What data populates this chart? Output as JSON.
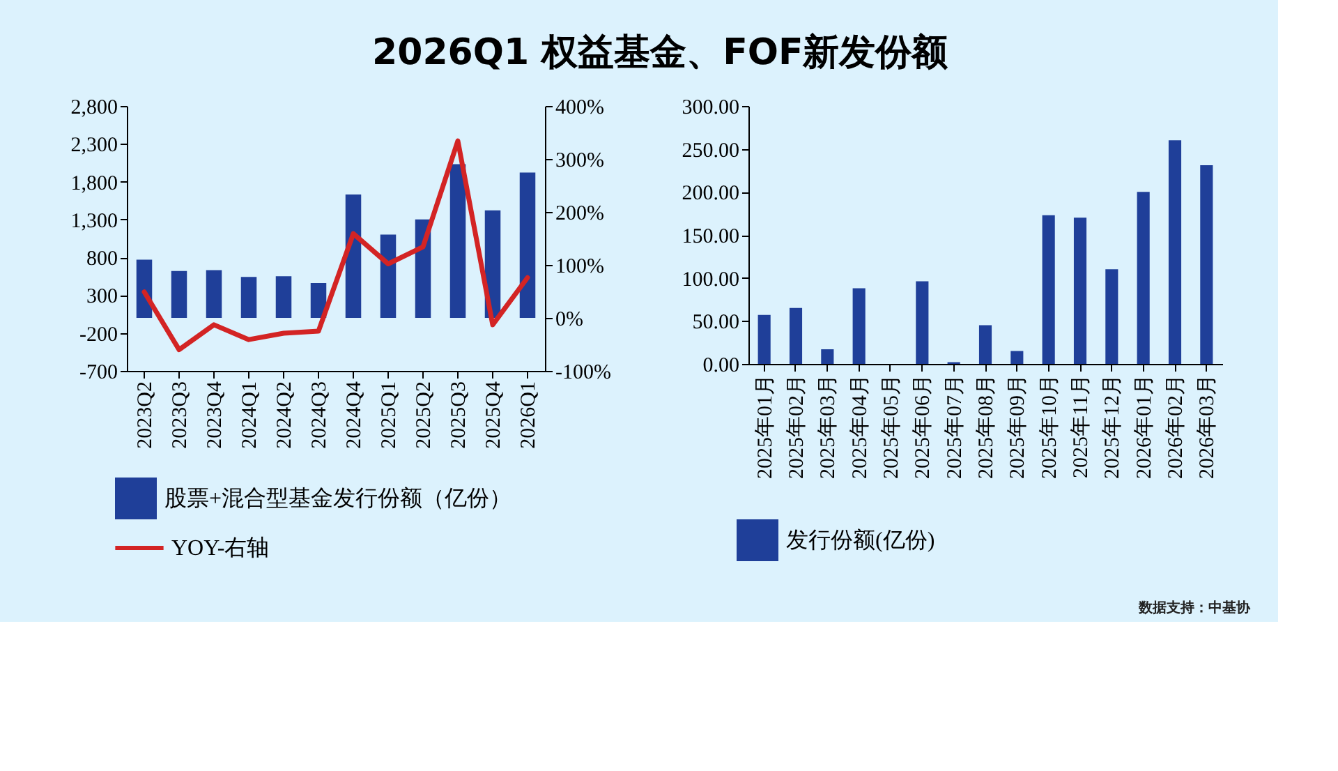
{
  "chart_data": [
    {
      "type": "bar",
      "title": "2026Q1 权益基金、FOF新发份额",
      "categories": [
        "2023Q2",
        "2023Q3",
        "2023Q4",
        "2024Q1",
        "2024Q2",
        "2024Q3",
        "2024Q4",
        "2025Q1",
        "2025Q2",
        "2025Q3",
        "2025Q4",
        "2026Q1"
      ],
      "series": [
        {
          "name": "股票+混合型基金发行份额（亿份）",
          "type": "bar",
          "color": "#1f3f99",
          "values": [
            770,
            620,
            630,
            540,
            550,
            460,
            1630,
            1100,
            1300,
            2030,
            1420,
            1920
          ]
        },
        {
          "name": "YOY-右轴",
          "type": "line",
          "axis": "y2",
          "color": "#d32424",
          "values": [
            49,
            -60,
            -13,
            -41,
            -29,
            -25,
            159,
            102,
            134,
            334,
            -13,
            76
          ]
        }
      ],
      "ylim": [
        -700,
        2800
      ],
      "yticks": [
        {
          "value": -700,
          "label": "-700"
        },
        {
          "value": -200,
          "label": "-200"
        },
        300,
        800,
        {
          "value": 1300,
          "label": "1,300"
        },
        {
          "value": 1800,
          "label": "1,800"
        },
        {
          "value": 2300,
          "label": "2,300"
        },
        {
          "value": 2800,
          "label": "2,800"
        }
      ],
      "y2lim": [
        -100,
        400
      ],
      "y2ticks": [
        {
          "value": -100,
          "label": "-100%"
        },
        {
          "value": 0,
          "label": "0%"
        },
        {
          "value": 100,
          "label": "100%"
        },
        {
          "value": 200,
          "label": "200%"
        },
        {
          "value": 300,
          "label": "300%"
        },
        {
          "value": 400,
          "label": "400%"
        }
      ],
      "legend": "bottom"
    },
    {
      "type": "bar",
      "categories": [
        "2025年01月",
        "2025年02月",
        "2025年03月",
        "2025年04月",
        "2025年05月",
        "2025年06月",
        "2025年07月",
        "2025年08月",
        "2025年09月",
        "2025年10月",
        "2025年11月",
        "2025年12月",
        "2026年01月",
        "2026年02月",
        "2026年03月"
      ],
      "series": [
        {
          "name": "发行份额(亿份)",
          "color": "#1f3f99",
          "values": [
            57,
            65,
            17,
            88,
            0,
            96,
            2,
            45,
            15,
            173,
            170,
            110,
            200,
            260,
            231
          ]
        }
      ],
      "ylim": [
        0,
        300
      ],
      "yticks": [
        {
          "value": 0,
          "label": "0.00"
        },
        {
          "value": 50,
          "label": "50.00"
        },
        {
          "value": 100,
          "label": "100.00"
        },
        {
          "value": 150,
          "label": "150.00"
        },
        {
          "value": 200,
          "label": "200.00"
        },
        {
          "value": 250,
          "label": "250.00"
        },
        {
          "value": 300,
          "label": "300.00"
        }
      ],
      "legend": "bottom",
      "annotations": [
        "数据支持：中基协"
      ]
    }
  ]
}
